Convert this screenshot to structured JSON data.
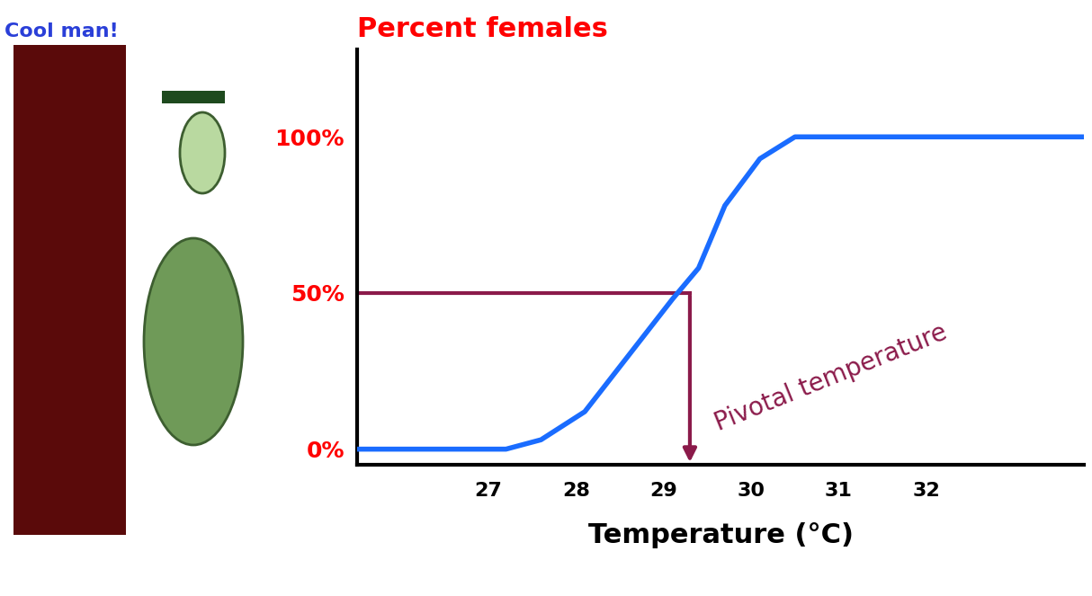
{
  "chart_data": {
    "type": "line",
    "title": "Percent females",
    "annotations": [
      "Cool man!"
    ],
    "x_label": "Temperature (°C)",
    "x": [
      25.5,
      27.2,
      27.6,
      28.1,
      28.6,
      29.1,
      29.4,
      29.7,
      30.1,
      30.5,
      33.8
    ],
    "values": [
      0,
      0,
      3,
      12,
      30,
      48,
      58,
      78,
      93,
      100,
      100
    ],
    "color": "#1a6cff",
    "xlim": [
      25.5,
      33.8
    ],
    "xticks": [
      27,
      28,
      29,
      30,
      31,
      32
    ],
    "ylim": [
      -5,
      128
    ],
    "yticks": [
      {
        "value": 0,
        "label": "0%"
      },
      {
        "value": 50,
        "label": "50%"
      },
      {
        "value": 100,
        "label": "100%"
      }
    ],
    "grid": false,
    "pivotal": {
      "x": 29.3,
      "y": 50,
      "label": "Pivotal temperature",
      "color": "#8b1a4a"
    }
  }
}
